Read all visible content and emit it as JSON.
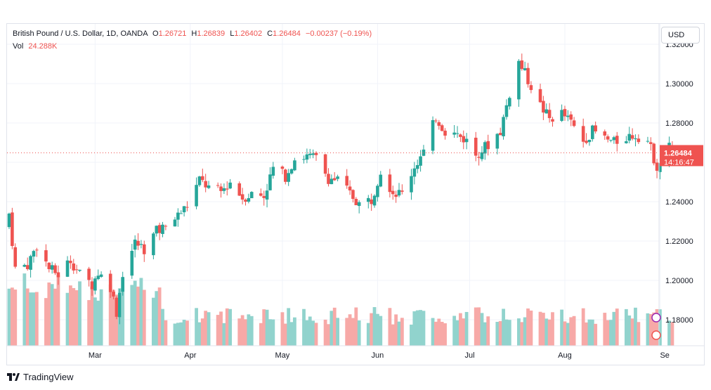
{
  "legend": {
    "symbol": "British Pound / U.S. Dollar, 1D, OANDA",
    "o_label": "O",
    "o_value": "1.26721",
    "h_label": "H",
    "h_value": "1.26839",
    "l_label": "L",
    "l_value": "1.26402",
    "c_label": "C",
    "c_value": "1.26484",
    "change": "−0.00237 (−0.19%)",
    "vol_label": "Vol",
    "vol_value": "24.288K"
  },
  "currency_button": "USD",
  "brand": "TradingView",
  "colors": {
    "up": "#26a69a",
    "down": "#ef5350",
    "vol_up": "#91d3cd",
    "vol_down": "#f7a9a7",
    "grid": "#f0f3fa"
  },
  "price_badge": {
    "price": "1.26484",
    "countdown": "14:16:47"
  },
  "chart_data": {
    "type": "candlestick",
    "ylim": [
      1.1675,
      1.3225
    ],
    "yticks": [
      "1.18000",
      "1.20000",
      "1.22000",
      "1.24000",
      "1.26000",
      "1.28000",
      "1.30000",
      "1.32000"
    ],
    "xticks": [
      "Mar",
      "Apr",
      "May",
      "Jun",
      "Jul",
      "Aug",
      "Se"
    ],
    "last_price": 1.26484,
    "close_path": [
      [
        "Feb 1",
        1.234
      ],
      [
        "Feb 3",
        1.206
      ],
      [
        "Feb 7",
        1.208
      ],
      [
        "Feb 10",
        1.218
      ],
      [
        "Feb 14",
        1.206
      ],
      [
        "Feb 17",
        1.203
      ],
      [
        "Feb 21",
        1.2105
      ],
      [
        "Feb 24",
        1.203
      ],
      [
        "Feb 28",
        1.198
      ],
      [
        "Mar 2",
        1.204
      ],
      [
        "Mar 6",
        1.197
      ],
      [
        "Mar 8",
        1.184
      ],
      [
        "Mar 10",
        1.204
      ],
      [
        "Mar 14",
        1.219
      ],
      [
        "Mar 17",
        1.216
      ],
      [
        "Mar 21",
        1.225
      ],
      [
        "Mar 24",
        1.227
      ],
      [
        "Mar 28",
        1.233
      ],
      [
        "Mar 31",
        1.238
      ],
      [
        "Apr 4",
        1.251
      ],
      [
        "Apr 7",
        1.247
      ],
      [
        "Apr 11",
        1.245
      ],
      [
        "Apr 14",
        1.25
      ],
      [
        "Apr 18",
        1.242
      ],
      [
        "Apr 21",
        1.244
      ],
      [
        "Apr 25",
        1.243
      ],
      [
        "Apr 28",
        1.257
      ],
      [
        "May 2",
        1.253
      ],
      [
        "May 5",
        1.262
      ],
      [
        "May 9",
        1.263
      ],
      [
        "May 12",
        1.262
      ],
      [
        "May 16",
        1.252
      ],
      [
        "May 19",
        1.251
      ],
      [
        "May 23",
        1.244
      ],
      [
        "May 26",
        1.239
      ],
      [
        "May 30",
        1.241
      ],
      [
        "Jun 2",
        1.256
      ],
      [
        "Jun 6",
        1.245
      ],
      [
        "Jun 9",
        1.244
      ],
      [
        "Jun 13",
        1.258
      ],
      [
        "Jun 16",
        1.265
      ],
      [
        "Jun 20",
        1.283
      ],
      [
        "Jun 23",
        1.276
      ],
      [
        "Jun 27",
        1.274
      ],
      [
        "Jun 30",
        1.271
      ],
      [
        "Jul 3",
        1.264
      ],
      [
        "Jul 7",
        1.269
      ],
      [
        "Jul 11",
        1.276
      ],
      [
        "Jul 14",
        1.295
      ],
      [
        "Jul 17",
        1.311
      ],
      [
        "Jul 20",
        1.302
      ],
      [
        "Jul 24",
        1.289
      ],
      [
        "Jul 27",
        1.282
      ],
      [
        "Jul 31",
        1.285
      ],
      [
        "Aug 3",
        1.28
      ],
      [
        "Aug 7",
        1.271
      ],
      [
        "Aug 10",
        1.276
      ],
      [
        "Aug 14",
        1.272
      ],
      [
        "Aug 17",
        1.27
      ],
      [
        "Aug 21",
        1.273
      ],
      [
        "Aug 24",
        1.274
      ],
      [
        "Aug 28",
        1.271
      ],
      [
        "Aug 31",
        1.258
      ],
      [
        "Sep 2",
        1.262
      ],
      [
        "Sep 4",
        1.268
      ],
      [
        "Sep 5",
        1.2648
      ]
    ]
  }
}
